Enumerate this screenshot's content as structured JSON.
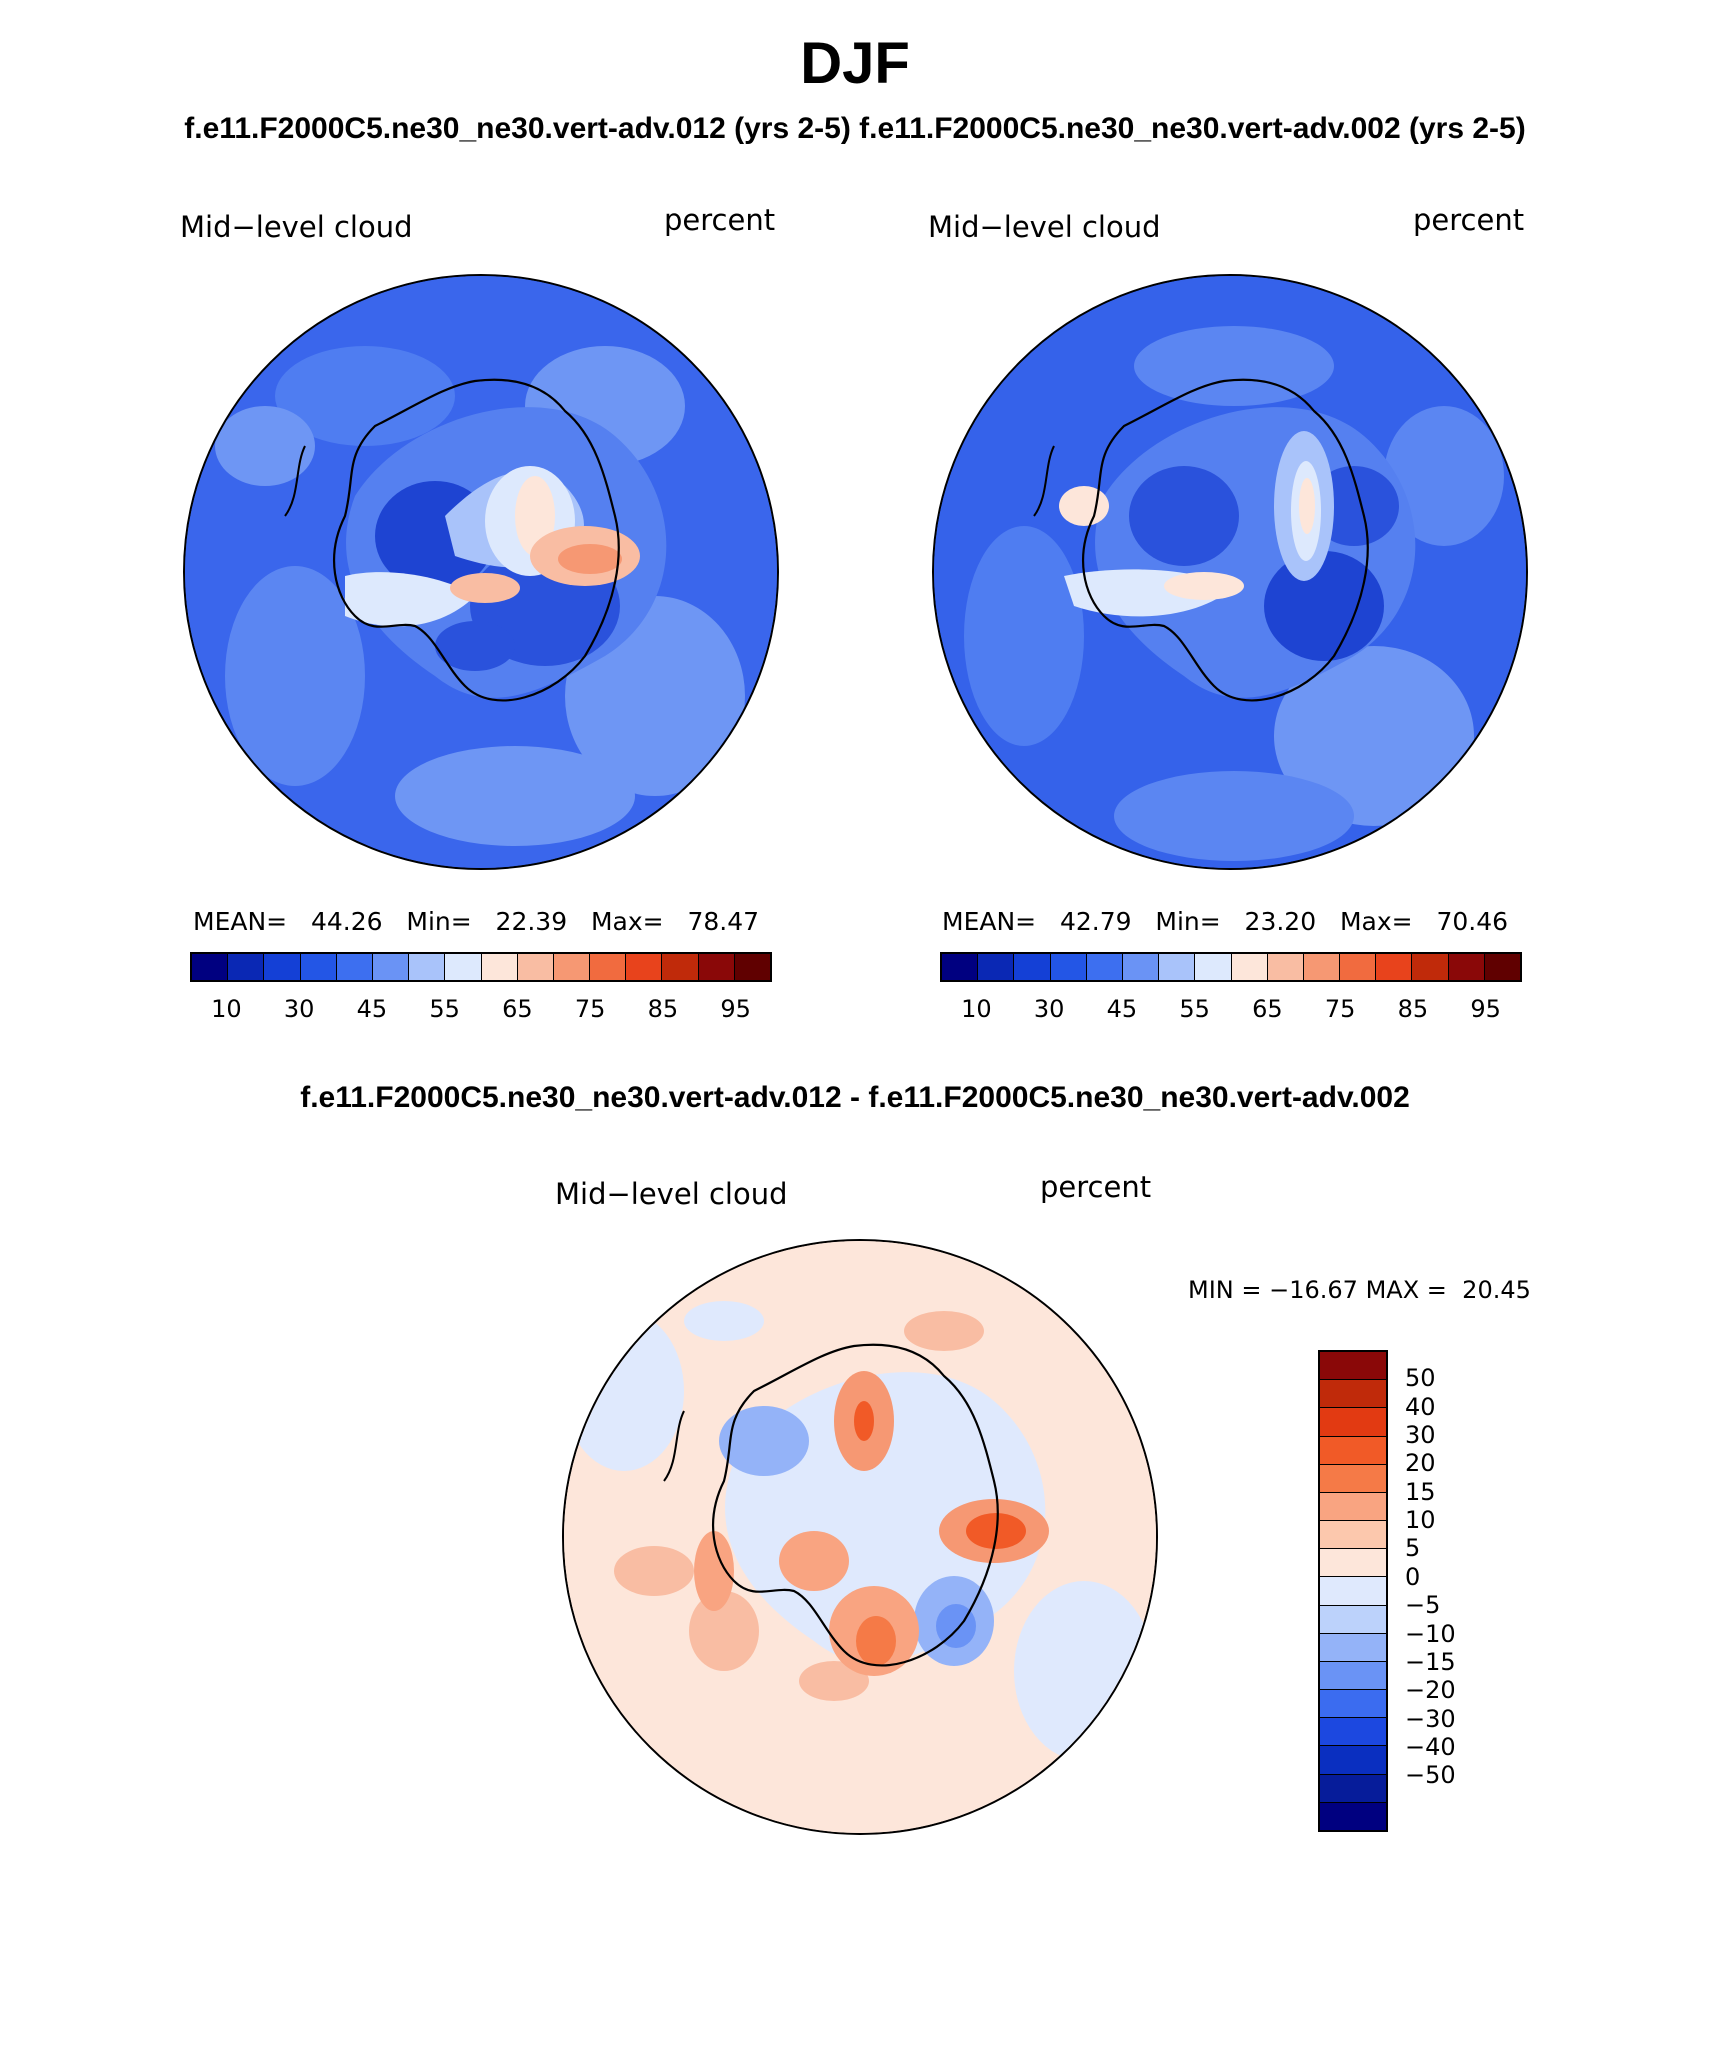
{
  "page_title": "DJF",
  "top_subtitle_left": "f.e11.F2000C5.ne30_ne30.vert-adv.012 (yrs 2-5)",
  "top_subtitle_right": "f.e11.F2000C5.ne30_ne30.vert-adv.002 (yrs 2-5)",
  "diff_subtitle": "f.e11.F2000C5.ne30_ne30.vert-adv.012 - f.e11.F2000C5.ne30_ne30.vert-adv.002",
  "panels": [
    {
      "variable": "Mid−level cloud",
      "units": "percent",
      "mean_label": "MEAN=",
      "mean": "44.26",
      "min_label": "Min=",
      "min": "22.39",
      "max_label": "Max=",
      "max": "78.47"
    },
    {
      "variable": "Mid−level cloud",
      "units": "percent",
      "mean_label": "MEAN=",
      "mean": "42.79",
      "min_label": "Min=",
      "min": "23.20",
      "max_label": "Max=",
      "max": "70.46"
    }
  ],
  "diff_panel": {
    "variable": "Mid−level cloud",
    "units": "percent",
    "min_label": "MIN =",
    "min": "−16.67",
    "max_label": "MAX =",
    "max": "20.45"
  },
  "abs_colorbar": {
    "colors": [
      "#000080",
      "#0a28b4",
      "#1440d6",
      "#2356e6",
      "#3d6ff0",
      "#6a93f5",
      "#a9c3fa",
      "#dde9fd",
      "#fde6da",
      "#f9bda3",
      "#f69873",
      "#f16b3f",
      "#e8431c",
      "#c02a0a",
      "#8a0808",
      "#600000"
    ],
    "tick_labels": [
      "10",
      "30",
      "45",
      "55",
      "65",
      "75",
      "85",
      "95"
    ]
  },
  "diff_colorbar": {
    "colors_top_to_bottom": [
      "#8a0808",
      "#c02a0a",
      "#e23a12",
      "#f15a27",
      "#f57a47",
      "#f9a481",
      "#fcc8ad",
      "#fde6da",
      "#dfe9fd",
      "#bcd2fb",
      "#94b3f8",
      "#6a93f5",
      "#3b6cf0",
      "#1c48e0",
      "#0a2fc0",
      "#061c9a",
      "#000080"
    ],
    "tick_labels_top_to_bottom": [
      "50",
      "40",
      "30",
      "20",
      "15",
      "10",
      "5",
      "0",
      "−5",
      "−10",
      "−15",
      "−20",
      "−30",
      "−40",
      "−50"
    ]
  }
}
